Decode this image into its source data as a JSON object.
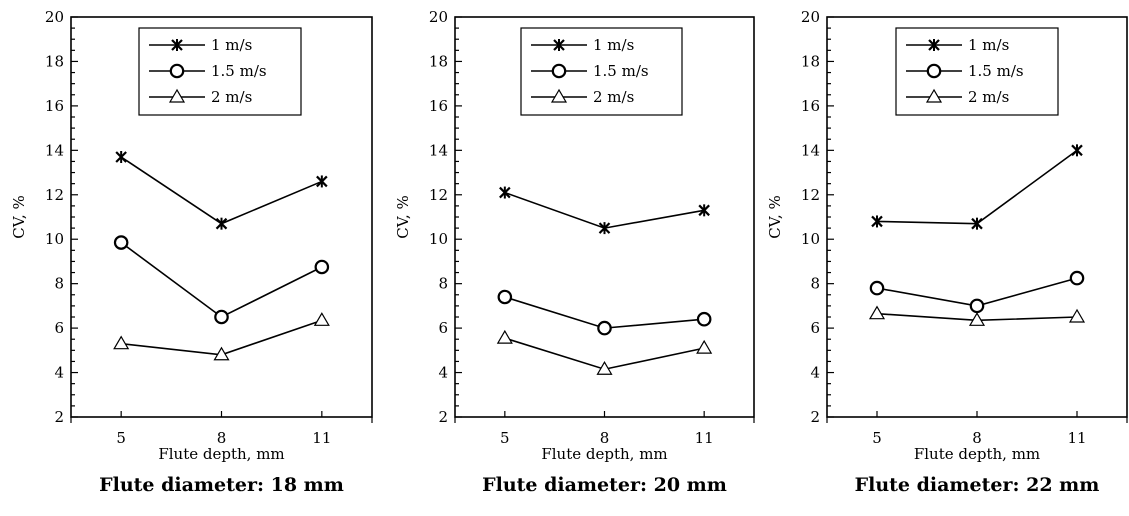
{
  "chart_data": [
    {
      "type": "line",
      "title": "Flute diameter: 18 mm",
      "xlabel": "Flute depth, mm",
      "ylabel": "CV, %",
      "categories": [
        "5",
        "8",
        "11"
      ],
      "ylim": [
        2,
        20
      ],
      "yticks": [
        2,
        4,
        6,
        8,
        10,
        12,
        14,
        16,
        18,
        20
      ],
      "grid": false,
      "legend": "top-center",
      "series": [
        {
          "name": "1 m/s",
          "marker": "asterisk",
          "values": [
            13.7,
            10.7,
            12.6
          ]
        },
        {
          "name": "1.5 m/s",
          "marker": "circle",
          "values": [
            9.85,
            6.5,
            8.75
          ]
        },
        {
          "name": "2 m/s",
          "marker": "triangle",
          "values": [
            5.3,
            4.8,
            6.35
          ]
        }
      ]
    },
    {
      "type": "line",
      "title": "Flute diameter: 20 mm",
      "xlabel": "Flute depth, mm",
      "ylabel": "CV, %",
      "categories": [
        "5",
        "8",
        "11"
      ],
      "ylim": [
        2,
        20
      ],
      "yticks": [
        2,
        4,
        6,
        8,
        10,
        12,
        14,
        16,
        18,
        20
      ],
      "grid": false,
      "legend": "top-center",
      "series": [
        {
          "name": "1 m/s",
          "marker": "asterisk",
          "values": [
            12.1,
            10.5,
            11.3
          ]
        },
        {
          "name": "1.5 m/s",
          "marker": "circle",
          "values": [
            7.4,
            6.0,
            6.4
          ]
        },
        {
          "name": "2 m/s",
          "marker": "triangle",
          "values": [
            5.55,
            4.15,
            5.1
          ]
        }
      ]
    },
    {
      "type": "line",
      "title": "Flute diameter: 22 mm",
      "xlabel": "Flute depth, mm",
      "ylabel": "CV, %",
      "categories": [
        "5",
        "8",
        "11"
      ],
      "ylim": [
        2,
        20
      ],
      "yticks": [
        2,
        4,
        6,
        8,
        10,
        12,
        14,
        16,
        18,
        20
      ],
      "grid": false,
      "legend": "top-center",
      "series": [
        {
          "name": "1 m/s",
          "marker": "asterisk",
          "values": [
            10.8,
            10.7,
            14.0
          ]
        },
        {
          "name": "1.5 m/s",
          "marker": "circle",
          "values": [
            7.8,
            7.0,
            8.25
          ]
        },
        {
          "name": "2 m/s",
          "marker": "triangle",
          "values": [
            6.65,
            6.35,
            6.5
          ]
        }
      ]
    }
  ]
}
